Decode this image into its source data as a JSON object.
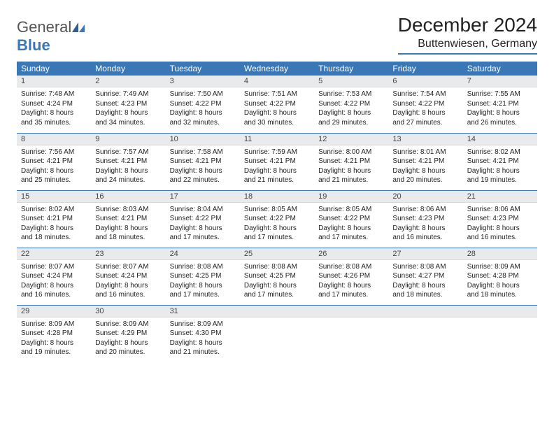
{
  "brand": {
    "part1": "General",
    "part2": "Blue"
  },
  "title": "December 2024",
  "location": "Buttenwiesen, Germany",
  "colors": {
    "accent": "#3a77b7",
    "header_bg": "#3a77b7",
    "daynum_bg": "#e9eaec"
  },
  "weekdays": [
    "Sunday",
    "Monday",
    "Tuesday",
    "Wednesday",
    "Thursday",
    "Friday",
    "Saturday"
  ],
  "weeks": [
    [
      {
        "n": "1",
        "sunrise": "Sunrise: 7:48 AM",
        "sunset": "Sunset: 4:24 PM",
        "daylight": "Daylight: 8 hours and 35 minutes."
      },
      {
        "n": "2",
        "sunrise": "Sunrise: 7:49 AM",
        "sunset": "Sunset: 4:23 PM",
        "daylight": "Daylight: 8 hours and 34 minutes."
      },
      {
        "n": "3",
        "sunrise": "Sunrise: 7:50 AM",
        "sunset": "Sunset: 4:22 PM",
        "daylight": "Daylight: 8 hours and 32 minutes."
      },
      {
        "n": "4",
        "sunrise": "Sunrise: 7:51 AM",
        "sunset": "Sunset: 4:22 PM",
        "daylight": "Daylight: 8 hours and 30 minutes."
      },
      {
        "n": "5",
        "sunrise": "Sunrise: 7:53 AM",
        "sunset": "Sunset: 4:22 PM",
        "daylight": "Daylight: 8 hours and 29 minutes."
      },
      {
        "n": "6",
        "sunrise": "Sunrise: 7:54 AM",
        "sunset": "Sunset: 4:22 PM",
        "daylight": "Daylight: 8 hours and 27 minutes."
      },
      {
        "n": "7",
        "sunrise": "Sunrise: 7:55 AM",
        "sunset": "Sunset: 4:21 PM",
        "daylight": "Daylight: 8 hours and 26 minutes."
      }
    ],
    [
      {
        "n": "8",
        "sunrise": "Sunrise: 7:56 AM",
        "sunset": "Sunset: 4:21 PM",
        "daylight": "Daylight: 8 hours and 25 minutes."
      },
      {
        "n": "9",
        "sunrise": "Sunrise: 7:57 AM",
        "sunset": "Sunset: 4:21 PM",
        "daylight": "Daylight: 8 hours and 24 minutes."
      },
      {
        "n": "10",
        "sunrise": "Sunrise: 7:58 AM",
        "sunset": "Sunset: 4:21 PM",
        "daylight": "Daylight: 8 hours and 22 minutes."
      },
      {
        "n": "11",
        "sunrise": "Sunrise: 7:59 AM",
        "sunset": "Sunset: 4:21 PM",
        "daylight": "Daylight: 8 hours and 21 minutes."
      },
      {
        "n": "12",
        "sunrise": "Sunrise: 8:00 AM",
        "sunset": "Sunset: 4:21 PM",
        "daylight": "Daylight: 8 hours and 21 minutes."
      },
      {
        "n": "13",
        "sunrise": "Sunrise: 8:01 AM",
        "sunset": "Sunset: 4:21 PM",
        "daylight": "Daylight: 8 hours and 20 minutes."
      },
      {
        "n": "14",
        "sunrise": "Sunrise: 8:02 AM",
        "sunset": "Sunset: 4:21 PM",
        "daylight": "Daylight: 8 hours and 19 minutes."
      }
    ],
    [
      {
        "n": "15",
        "sunrise": "Sunrise: 8:02 AM",
        "sunset": "Sunset: 4:21 PM",
        "daylight": "Daylight: 8 hours and 18 minutes."
      },
      {
        "n": "16",
        "sunrise": "Sunrise: 8:03 AM",
        "sunset": "Sunset: 4:21 PM",
        "daylight": "Daylight: 8 hours and 18 minutes."
      },
      {
        "n": "17",
        "sunrise": "Sunrise: 8:04 AM",
        "sunset": "Sunset: 4:22 PM",
        "daylight": "Daylight: 8 hours and 17 minutes."
      },
      {
        "n": "18",
        "sunrise": "Sunrise: 8:05 AM",
        "sunset": "Sunset: 4:22 PM",
        "daylight": "Daylight: 8 hours and 17 minutes."
      },
      {
        "n": "19",
        "sunrise": "Sunrise: 8:05 AM",
        "sunset": "Sunset: 4:22 PM",
        "daylight": "Daylight: 8 hours and 17 minutes."
      },
      {
        "n": "20",
        "sunrise": "Sunrise: 8:06 AM",
        "sunset": "Sunset: 4:23 PM",
        "daylight": "Daylight: 8 hours and 16 minutes."
      },
      {
        "n": "21",
        "sunrise": "Sunrise: 8:06 AM",
        "sunset": "Sunset: 4:23 PM",
        "daylight": "Daylight: 8 hours and 16 minutes."
      }
    ],
    [
      {
        "n": "22",
        "sunrise": "Sunrise: 8:07 AM",
        "sunset": "Sunset: 4:24 PM",
        "daylight": "Daylight: 8 hours and 16 minutes."
      },
      {
        "n": "23",
        "sunrise": "Sunrise: 8:07 AM",
        "sunset": "Sunset: 4:24 PM",
        "daylight": "Daylight: 8 hours and 16 minutes."
      },
      {
        "n": "24",
        "sunrise": "Sunrise: 8:08 AM",
        "sunset": "Sunset: 4:25 PM",
        "daylight": "Daylight: 8 hours and 17 minutes."
      },
      {
        "n": "25",
        "sunrise": "Sunrise: 8:08 AM",
        "sunset": "Sunset: 4:25 PM",
        "daylight": "Daylight: 8 hours and 17 minutes."
      },
      {
        "n": "26",
        "sunrise": "Sunrise: 8:08 AM",
        "sunset": "Sunset: 4:26 PM",
        "daylight": "Daylight: 8 hours and 17 minutes."
      },
      {
        "n": "27",
        "sunrise": "Sunrise: 8:08 AM",
        "sunset": "Sunset: 4:27 PM",
        "daylight": "Daylight: 8 hours and 18 minutes."
      },
      {
        "n": "28",
        "sunrise": "Sunrise: 8:09 AM",
        "sunset": "Sunset: 4:28 PM",
        "daylight": "Daylight: 8 hours and 18 minutes."
      }
    ],
    [
      {
        "n": "29",
        "sunrise": "Sunrise: 8:09 AM",
        "sunset": "Sunset: 4:28 PM",
        "daylight": "Daylight: 8 hours and 19 minutes."
      },
      {
        "n": "30",
        "sunrise": "Sunrise: 8:09 AM",
        "sunset": "Sunset: 4:29 PM",
        "daylight": "Daylight: 8 hours and 20 minutes."
      },
      {
        "n": "31",
        "sunrise": "Sunrise: 8:09 AM",
        "sunset": "Sunset: 4:30 PM",
        "daylight": "Daylight: 8 hours and 21 minutes."
      },
      {
        "empty": true
      },
      {
        "empty": true
      },
      {
        "empty": true
      },
      {
        "empty": true
      }
    ]
  ]
}
